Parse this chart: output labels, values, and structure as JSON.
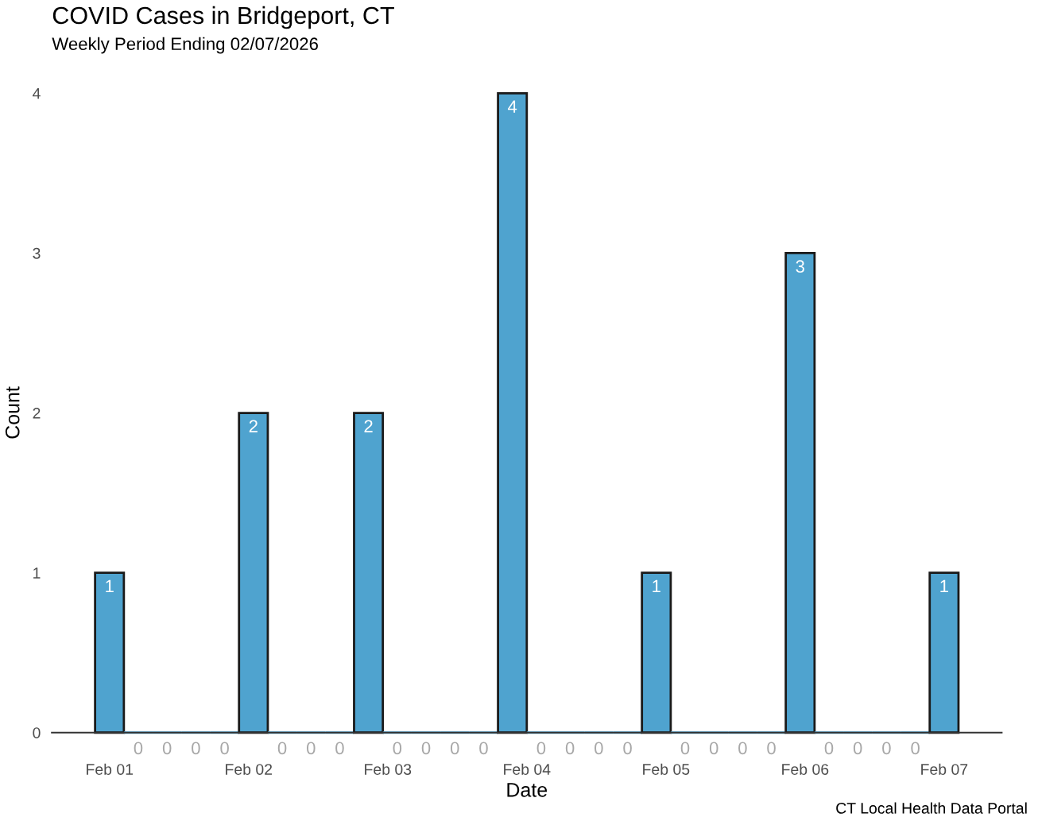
{
  "chart_data": {
    "type": "histogram",
    "title": "COVID Cases in Bridgeport, CT",
    "subtitle": "Weekly Period Ending 02/07/2026",
    "xlabel": "Date",
    "ylabel": "Count",
    "annotations": [
      "CT Local Health Data Portal"
    ],
    "bins": [
      "2026-01-31T21:31",
      "2026-02-01T02:29",
      "2026-02-01T07:27",
      "2026-02-01T12:25",
      "2026-02-01T17:23",
      "2026-02-01T22:21",
      "2026-02-02T03:19",
      "2026-02-02T08:17",
      "2026-02-02T13:15",
      "2026-02-02T18:12",
      "2026-02-02T23:10",
      "2026-02-03T04:08",
      "2026-02-03T09:06",
      "2026-02-03T14:04",
      "2026-02-03T19:02",
      "2026-02-04T00:00",
      "2026-02-04T04:58",
      "2026-02-04T09:56",
      "2026-02-04T14:54",
      "2026-02-04T19:52",
      "2026-02-05T00:50",
      "2026-02-05T05:48",
      "2026-02-05T10:46",
      "2026-02-05T15:43",
      "2026-02-05T20:41",
      "2026-02-06T01:39",
      "2026-02-06T06:37",
      "2026-02-06T11:35",
      "2026-02-06T16:33",
      "2026-02-06T21:31",
      "2026-02-07T02:29"
    ],
    "values": [
      1,
      0,
      0,
      0,
      0,
      2,
      0,
      0,
      0,
      2,
      0,
      0,
      0,
      0,
      4,
      0,
      0,
      0,
      0,
      1,
      0,
      0,
      0,
      0,
      3,
      0,
      0,
      0,
      0,
      1
    ],
    "color": "#4fa3cf",
    "data_labels": true,
    "xlim": [
      "2026-01-31T14:04",
      "2026-02-07T09:56"
    ],
    "xticks": [
      {
        "value": "2026-02-01",
        "label": "Feb 01"
      },
      {
        "value": "2026-02-02",
        "label": "Feb 02"
      },
      {
        "value": "2026-02-03",
        "label": "Feb 03"
      },
      {
        "value": "2026-02-04",
        "label": "Feb 04"
      },
      {
        "value": "2026-02-05",
        "label": "Feb 05"
      },
      {
        "value": "2026-02-06",
        "label": "Feb 06"
      },
      {
        "value": "2026-02-07",
        "label": "Feb 07"
      }
    ],
    "ylim": [
      0,
      4
    ],
    "yticks": [
      0,
      1,
      2,
      3,
      4
    ],
    "grid": false,
    "legend": false
  }
}
